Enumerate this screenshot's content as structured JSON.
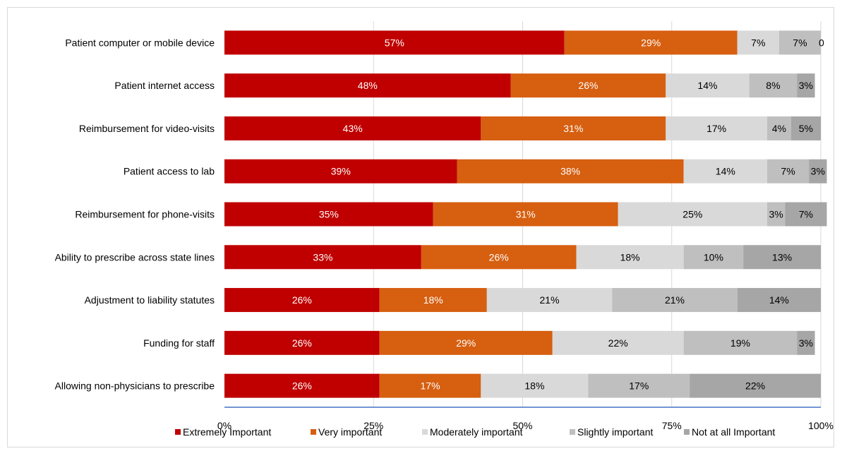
{
  "chart_data": {
    "type": "bar",
    "orientation": "horizontal",
    "stacked": true,
    "categories": [
      "Patient computer or mobile device",
      "Patient internet access",
      "Reimbursement for video-visits",
      "Patient access to lab",
      "Reimbursement for phone-visits",
      "Ability to prescribe across state lines",
      "Adjustment to liability statutes",
      "Funding for staff",
      "Allowing non-physicians to prescribe"
    ],
    "series": [
      {
        "name": "Extremely Important",
        "color": "#c00000",
        "text_color": "#ffffff",
        "values": [
          57,
          48,
          43,
          39,
          35,
          33,
          26,
          26,
          26
        ],
        "labels": [
          "57%",
          "48%",
          "43%",
          "39%",
          "35%",
          "33%",
          "26%",
          "26%",
          "26%"
        ]
      },
      {
        "name": "Very important",
        "color": "#d65f10",
        "text_color": "#ffffff",
        "values": [
          29,
          26,
          31,
          38,
          31,
          26,
          18,
          29,
          17
        ],
        "labels": [
          "29%",
          "26%",
          "31%",
          "38%",
          "31%",
          "26%",
          "18%",
          "29%",
          "17%"
        ]
      },
      {
        "name": "Moderately important",
        "color": "#d9d9d9",
        "text_color": "#000000",
        "values": [
          7,
          14,
          17,
          14,
          25,
          18,
          21,
          22,
          18
        ],
        "labels": [
          "7%",
          "14%",
          "17%",
          "14%",
          "25%",
          "18%",
          "21%",
          "22%",
          "18%"
        ]
      },
      {
        "name": "Slightly important",
        "color": "#bfbfbf",
        "text_color": "#000000",
        "values": [
          7,
          8,
          4,
          7,
          3,
          10,
          21,
          19,
          17
        ],
        "labels": [
          "7%",
          "8%",
          "4%",
          "7%",
          "3%",
          "10%",
          "21%",
          "19%",
          "17%"
        ]
      },
      {
        "name": "Not at all Important",
        "color": "#a6a6a6",
        "text_color": "#000000",
        "values": [
          0,
          3,
          5,
          3,
          7,
          13,
          14,
          3,
          22
        ],
        "labels": [
          "0",
          "3%",
          "5%",
          "3%",
          "7%",
          "13%",
          "14%",
          "3%",
          "22%"
        ]
      }
    ],
    "xticks": [
      "0%",
      "25%",
      "50%",
      "75%",
      "100%"
    ],
    "xlim": [
      0,
      100
    ],
    "grid": true,
    "legend_position": "bottom",
    "title": "",
    "xlabel": "",
    "ylabel": ""
  }
}
